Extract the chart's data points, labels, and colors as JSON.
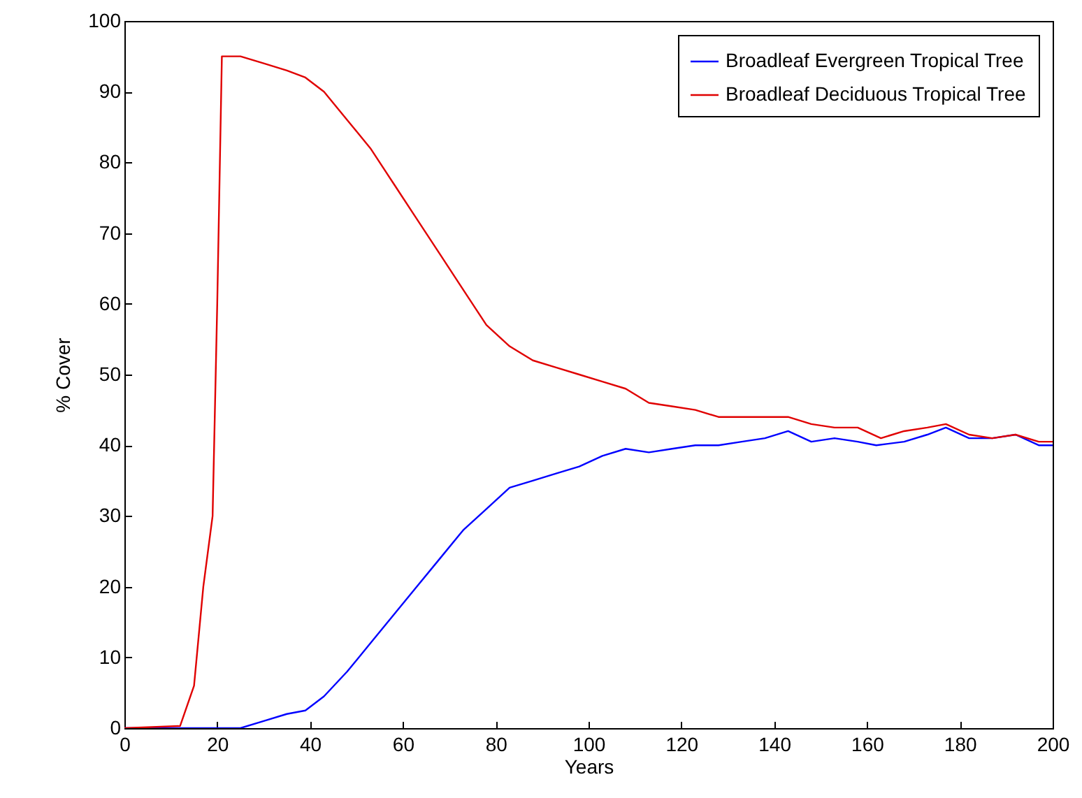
{
  "chart_data": {
    "type": "line",
    "xlabel": "Years",
    "ylabel": "% Cover",
    "xlim": [
      0,
      200
    ],
    "xticks": [
      0,
      20,
      40,
      60,
      80,
      100,
      120,
      140,
      160,
      180,
      200
    ],
    "ylim": [
      0,
      100
    ],
    "yticks": [
      0,
      10,
      20,
      30,
      40,
      50,
      60,
      70,
      80,
      90,
      100
    ],
    "grid": false,
    "legend": "top right",
    "marker": "none",
    "line_style": "solid",
    "series": [
      {
        "name": "Broadleaf Evergreen Tropical Tree",
        "color": "#0000ff",
        "x": [
          0,
          25,
          30,
          35,
          39,
          43,
          48,
          53,
          58,
          63,
          68,
          73,
          78,
          83,
          88,
          93,
          98,
          103,
          108,
          113,
          118,
          123,
          128,
          133,
          138,
          143,
          148,
          153,
          158,
          162,
          168,
          173,
          177,
          182,
          187,
          192,
          197,
          200
        ],
        "values": [
          0,
          0,
          1,
          2,
          2.5,
          4.5,
          8,
          12,
          16,
          20,
          24,
          28,
          31,
          34,
          35,
          36,
          37,
          38.5,
          39.5,
          39,
          39.5,
          40,
          40,
          40.5,
          41,
          42,
          40.5,
          41,
          40.5,
          40,
          40.5,
          41.5,
          42.5,
          41,
          41,
          41.5,
          40,
          40
        ]
      },
      {
        "name": "Broadleaf Deciduous Tropical Tree",
        "color": "#e00000",
        "x": [
          0,
          12,
          15,
          17,
          19,
          20,
          21,
          25,
          30,
          35,
          39,
          43,
          48,
          53,
          58,
          63,
          68,
          73,
          78,
          83,
          88,
          93,
          98,
          103,
          108,
          113,
          118,
          123,
          128,
          133,
          138,
          143,
          148,
          153,
          158,
          163,
          168,
          173,
          177,
          182,
          187,
          192,
          197,
          200
        ],
        "values": [
          0,
          0.3,
          6,
          20,
          30,
          60,
          95,
          95,
          94,
          93,
          92,
          90,
          86,
          82,
          77,
          72,
          67,
          62,
          57,
          54,
          52,
          51,
          50,
          49,
          48,
          46,
          45.5,
          45,
          44,
          44,
          44,
          44,
          43,
          42.5,
          42.5,
          41,
          42,
          42.5,
          43,
          41.5,
          41,
          41.5,
          40.5,
          40.5
        ]
      }
    ]
  }
}
